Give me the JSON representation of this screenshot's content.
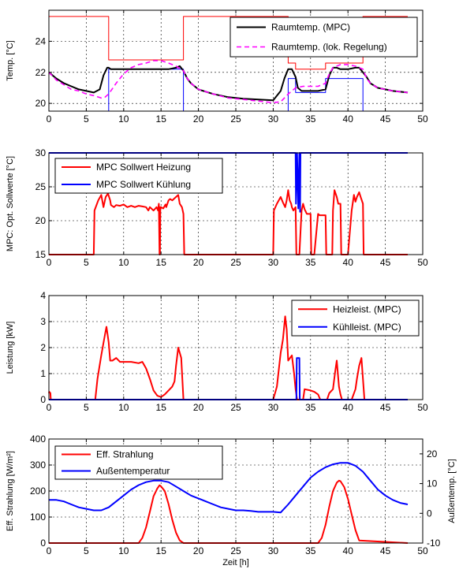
{
  "chart_data": [
    {
      "type": "line",
      "ylabel": "Temp. [°C]",
      "xlim": [
        0,
        50
      ],
      "ylim": [
        19.5,
        26
      ],
      "xticks": [
        "0",
        "5",
        "10",
        "15",
        "20",
        "25",
        "30",
        "35",
        "40",
        "45",
        "50"
      ],
      "yticks": [
        {
          "v": 20,
          "t": "20"
        },
        {
          "v": 22,
          "t": "22"
        },
        {
          "v": 24,
          "t": "24"
        }
      ],
      "grid": true,
      "legend_position": "top-right",
      "series": [
        {
          "name": "",
          "color": "#ff0000",
          "width": 1,
          "dash": "",
          "x": [
            0,
            8,
            8,
            18,
            18,
            32,
            32,
            33,
            33,
            37,
            37,
            42,
            42,
            48
          ],
          "y": [
            25.6,
            25.6,
            22.8,
            22.8,
            25.6,
            25.6,
            22.6,
            22.6,
            22.2,
            22.2,
            22.6,
            22.6,
            25.6,
            25.6
          ]
        },
        {
          "name": "",
          "color": "#0000ff",
          "width": 1,
          "dash": "",
          "x": [
            0,
            8,
            8,
            18,
            18,
            32,
            32,
            33,
            33,
            37,
            37,
            42,
            42,
            48
          ],
          "y": [
            19.5,
            19.5,
            22.2,
            22.2,
            19.5,
            19.5,
            21.6,
            21.6,
            20.7,
            20.7,
            21.6,
            21.6,
            19.5,
            19.5
          ]
        },
        {
          "name": "Raumtemp. (MPC)",
          "color": "#000000",
          "width": 2,
          "dash": "",
          "x": [
            0,
            1,
            2,
            3,
            4,
            5,
            6,
            6.8,
            7.3,
            7.8,
            8,
            8.3,
            9,
            10,
            11,
            12,
            13,
            14,
            15,
            16,
            17,
            17.5,
            18,
            18.5,
            19,
            20,
            22,
            24,
            26,
            28,
            30,
            31,
            31.5,
            32,
            32.5,
            33,
            33.3,
            33.8,
            34,
            35,
            36,
            37,
            37.5,
            38,
            38.5,
            39,
            40,
            41,
            41.5,
            42,
            42.5,
            43,
            44,
            45,
            46,
            47,
            48
          ],
          "y": [
            22.0,
            21.6,
            21.3,
            21.1,
            20.9,
            20.8,
            20.7,
            20.9,
            21.8,
            22.3,
            22.3,
            22.2,
            22.2,
            22.2,
            22.2,
            22.2,
            22.2,
            22.2,
            22.2,
            22.2,
            22.3,
            22.4,
            22.1,
            21.6,
            21.3,
            20.9,
            20.6,
            20.4,
            20.3,
            20.25,
            20.2,
            20.8,
            21.6,
            22.2,
            22.2,
            21.7,
            21.0,
            20.8,
            20.8,
            20.8,
            20.8,
            20.9,
            21.8,
            22.3,
            22.3,
            22.2,
            22.2,
            22.3,
            22.3,
            22.0,
            21.7,
            21.3,
            21.0,
            20.9,
            20.8,
            20.75,
            20.7
          ]
        },
        {
          "name": "Raumtemp. (lok. Regelung)",
          "color": "#ff00ff",
          "width": 1.6,
          "dash": "6,4",
          "x": [
            0,
            1,
            2,
            3,
            4,
            5,
            6,
            7,
            7.5,
            8,
            9,
            10,
            11,
            12,
            13,
            14,
            15,
            16,
            17,
            18,
            18.5,
            19,
            20,
            22,
            24,
            26,
            28,
            30,
            31,
            32,
            33,
            34,
            35,
            36,
            37,
            37.5,
            38,
            39,
            40,
            41,
            42,
            42.5,
            43,
            44,
            45,
            46,
            47,
            48
          ],
          "y": [
            22.0,
            21.5,
            21.2,
            20.9,
            20.8,
            20.6,
            20.5,
            20.35,
            20.4,
            20.6,
            21.3,
            21.9,
            22.3,
            22.5,
            22.6,
            22.75,
            22.75,
            22.6,
            22.4,
            22.1,
            21.6,
            21.3,
            20.9,
            20.6,
            20.35,
            20.25,
            20.15,
            20.05,
            20.1,
            20.6,
            21.0,
            21.1,
            21.1,
            21.1,
            21.3,
            21.9,
            22.3,
            22.5,
            22.5,
            22.4,
            22.2,
            21.6,
            21.3,
            21.0,
            20.9,
            20.8,
            20.75,
            20.7
          ]
        }
      ]
    },
    {
      "type": "line",
      "ylabel": "MPC: Opt. Sollwerte [°C]",
      "xlim": [
        0,
        50
      ],
      "ylim": [
        15,
        30
      ],
      "xticks": [
        "0",
        "5",
        "10",
        "15",
        "20",
        "25",
        "30",
        "35",
        "40",
        "45",
        "50"
      ],
      "yticks": [
        {
          "v": 15,
          "t": "15"
        },
        {
          "v": 20,
          "t": "20"
        },
        {
          "v": 25,
          "t": "25"
        },
        {
          "v": 30,
          "t": "30"
        }
      ],
      "grid": true,
      "legend_position": "top-left",
      "series": [
        {
          "name": "MPC Sollwert Heizung",
          "color": "#ff0000",
          "width": 2,
          "dash": "",
          "x": [
            0,
            6,
            6.1,
            6.6,
            7,
            7.3,
            7.6,
            7.9,
            8.2,
            8.3,
            8.7,
            9,
            9.5,
            10,
            10.5,
            11,
            11.5,
            12,
            12.5,
            13,
            13.3,
            13.5,
            14,
            14.4,
            14.6,
            14.7,
            14.8,
            14.85,
            14.9,
            14.95,
            15,
            15.3,
            15.6,
            15.7,
            16,
            16.2,
            16.5,
            17,
            17.3,
            17.5,
            17.8,
            18,
            18.1,
            30,
            30.1,
            30.5,
            31,
            31.3,
            31.6,
            31.8,
            32,
            32.2,
            32.4,
            32.5,
            32.7,
            33,
            33.1,
            33.5,
            33.8,
            34,
            34.2,
            34.5,
            35,
            35.1,
            35.5,
            36,
            36.2,
            37,
            37.1,
            37.9,
            38,
            38.2,
            38.5,
            38.7,
            39,
            39.1,
            40,
            40.5,
            40.8,
            41,
            41.2,
            41.5,
            41.7,
            42,
            42.1,
            48
          ],
          "y": [
            15,
            15,
            21.5,
            23,
            23.8,
            22,
            23.5,
            24,
            23,
            22.3,
            22,
            22.3,
            22.2,
            22.4,
            22,
            22.2,
            22,
            22.2,
            22.1,
            22,
            21.5,
            22,
            21.5,
            22,
            21.5,
            22.5,
            15,
            15,
            22,
            21.8,
            22,
            21.8,
            22.4,
            22,
            23,
            23.2,
            23,
            23.5,
            23.8,
            22.5,
            22,
            21,
            15,
            15,
            21.5,
            22.5,
            23.5,
            22.7,
            22,
            23,
            24.5,
            23,
            22.5,
            22,
            21.5,
            22,
            15,
            15,
            21.5,
            22.5,
            21.7,
            21,
            21,
            15,
            15,
            21,
            20.8,
            20.8,
            15,
            15,
            21.5,
            24.5,
            23.5,
            22.5,
            22.5,
            15,
            15,
            21.5,
            23.8,
            22.8,
            23.5,
            24.2,
            23.5,
            22.5,
            15,
            15
          ]
        },
        {
          "name": "MPC Sollwert Kühlung",
          "color": "#0000ff",
          "width": 2,
          "dash": "",
          "x": [
            0,
            33,
            33.05,
            33.2,
            33.35,
            33.5,
            33.6,
            33.65,
            48
          ],
          "y": [
            30,
            30,
            22.5,
            30,
            21.8,
            30,
            21.3,
            30,
            30
          ]
        }
      ]
    },
    {
      "type": "line",
      "ylabel": "Leistung [kW]",
      "xlim": [
        0,
        50
      ],
      "ylim": [
        0,
        4
      ],
      "xticks": [
        "0",
        "5",
        "10",
        "15",
        "20",
        "25",
        "30",
        "35",
        "40",
        "45",
        "50"
      ],
      "yticks": [
        {
          "v": 0,
          "t": "0"
        },
        {
          "v": 1,
          "t": "1"
        },
        {
          "v": 2,
          "t": "2"
        },
        {
          "v": 3,
          "t": "3"
        },
        {
          "v": 4,
          "t": "4"
        }
      ],
      "grid": true,
      "legend_position": "top-right",
      "series": [
        {
          "name": "Heizleist. (MPC)",
          "color": "#ff0000",
          "width": 2,
          "dash": "",
          "x": [
            0,
            0.05,
            0.2,
            0.25,
            6.2,
            6.5,
            7,
            7.5,
            7.7,
            8,
            8.2,
            8.5,
            9,
            9.5,
            10,
            11,
            12,
            12.5,
            13,
            13.5,
            14,
            14.5,
            15,
            15.5,
            16,
            16.5,
            16.8,
            17,
            17.3,
            17.7,
            18,
            30,
            30.5,
            31,
            31.3,
            31.6,
            31.8,
            32,
            32.5,
            32.8,
            33,
            33.2,
            33.6,
            34,
            34.2,
            35,
            35.5,
            36,
            36.3,
            37.2,
            37.5,
            38,
            38.3,
            38.5,
            38.8,
            39,
            39.2,
            40.5,
            41,
            41.2,
            41.5,
            41.8,
            42.2,
            48
          ],
          "y": [
            0.25,
            0.3,
            0.25,
            0,
            0,
            0.8,
            1.7,
            2.5,
            2.8,
            2.2,
            1.5,
            1.5,
            1.6,
            1.45,
            1.45,
            1.45,
            1.4,
            1.45,
            1.2,
            0.8,
            0.35,
            0.15,
            0.1,
            0.2,
            0.35,
            0.5,
            0.7,
            1.3,
            2.0,
            1.6,
            0,
            0,
            0.5,
            1.8,
            2.3,
            3.2,
            2.7,
            1.5,
            1.7,
            1.0,
            0.4,
            0,
            0,
            0,
            0.4,
            0.35,
            0.3,
            0.2,
            0,
            0,
            0.25,
            0.4,
            1.1,
            1.5,
            0.5,
            0.2,
            0,
            0,
            0.4,
            0.8,
            1.3,
            1.6,
            0,
            0
          ]
        },
        {
          "name": "Kühlleist. (MPC)",
          "color": "#0000ff",
          "width": 2,
          "dash": "",
          "x": [
            0,
            33.1,
            33.15,
            33.5,
            33.55,
            48
          ],
          "y": [
            0,
            0,
            1.6,
            1.6,
            0,
            0
          ]
        }
      ]
    },
    {
      "type": "line",
      "ylabel": "Eff. Strahlung [W/m²]",
      "y2label": "Außentemp. [°C]",
      "xlabel": "Zeit [h]",
      "xlim": [
        0,
        50
      ],
      "ylim": [
        0,
        400
      ],
      "y2lim": [
        -10,
        25
      ],
      "xticks": [
        "0",
        "5",
        "10",
        "15",
        "20",
        "25",
        "30",
        "35",
        "40",
        "45",
        "50"
      ],
      "yticks": [
        {
          "v": 0,
          "t": "0"
        },
        {
          "v": 100,
          "t": "100"
        },
        {
          "v": 200,
          "t": "200"
        },
        {
          "v": 300,
          "t": "300"
        },
        {
          "v": 400,
          "t": "400"
        }
      ],
      "y2ticks": [
        {
          "v": -10,
          "t": "-10"
        },
        {
          "v": 0,
          "t": "0"
        },
        {
          "v": 10,
          "t": "10"
        },
        {
          "v": 20,
          "t": "20"
        }
      ],
      "grid": true,
      "legend_position": "top-left",
      "series": [
        {
          "name": "Eff. Strahlung",
          "color": "#ff0000",
          "width": 2,
          "dash": "",
          "axis": "left",
          "x": [
            0,
            12,
            12.5,
            13,
            13.5,
            14,
            14.5,
            14.8,
            15,
            15.5,
            16,
            16.5,
            17,
            17.5,
            18,
            36,
            36.5,
            37,
            37.5,
            38,
            38.5,
            38.8,
            39,
            39.5,
            40,
            40.5,
            41,
            41.5,
            48
          ],
          "y": [
            0,
            0,
            20,
            60,
            120,
            180,
            210,
            222,
            218,
            200,
            150,
            90,
            40,
            10,
            0,
            0,
            20,
            70,
            140,
            200,
            232,
            240,
            238,
            215,
            170,
            110,
            50,
            10,
            0
          ]
        },
        {
          "name": "Außentemperatur",
          "color": "#0000ff",
          "width": 2,
          "dash": "",
          "axis": "right",
          "x": [
            0,
            1,
            2,
            3,
            4,
            5,
            6,
            7,
            8,
            9,
            10,
            11,
            12,
            13,
            14,
            15,
            16,
            17,
            18,
            19,
            20,
            21,
            22,
            23,
            24,
            25,
            26,
            27,
            28,
            29,
            30,
            31,
            32,
            33,
            34,
            35,
            36,
            37,
            38,
            39,
            40,
            41,
            42,
            43,
            44,
            45,
            46,
            47,
            48
          ],
          "y": [
            4.5,
            4.5,
            4,
            3,
            2,
            1.5,
            1,
            1,
            2,
            4,
            6,
            8,
            9.5,
            10.5,
            11,
            11,
            10.5,
            9,
            7.5,
            6,
            5,
            4,
            3,
            2,
            1.5,
            1,
            1,
            0.8,
            0.5,
            0.5,
            0.5,
            0.3,
            3,
            6,
            9,
            12,
            14,
            15.5,
            16.5,
            17,
            17,
            16,
            14,
            11,
            8,
            6,
            4.5,
            3.5,
            3
          ]
        }
      ]
    }
  ]
}
